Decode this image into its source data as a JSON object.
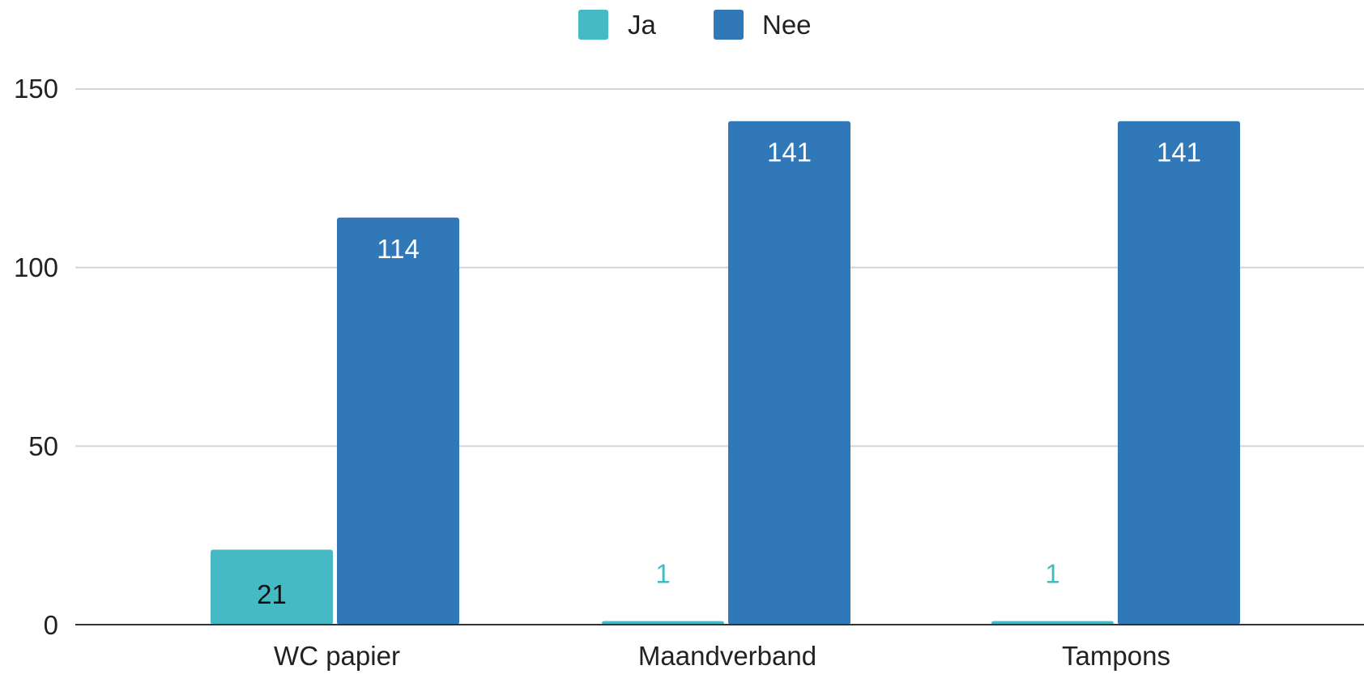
{
  "chart_data": {
    "type": "bar",
    "categories": [
      "WC papier",
      "Maandverband",
      "Tampons"
    ],
    "series": [
      {
        "name": "Ja",
        "values": [
          21,
          1,
          1
        ],
        "color": "#45bac5"
      },
      {
        "name": "Nee",
        "values": [
          114,
          141,
          141
        ],
        "color": "#3178b9"
      }
    ],
    "data_labels": [
      [
        "21",
        "1",
        "1"
      ],
      [
        "114",
        "141",
        "141"
      ]
    ],
    "ylim": [
      0,
      150
    ],
    "yticks": [
      "0",
      "50",
      "100",
      "150"
    ],
    "grid": true,
    "legend_position": "top-center",
    "title": "",
    "xlabel": "",
    "ylabel": ""
  }
}
